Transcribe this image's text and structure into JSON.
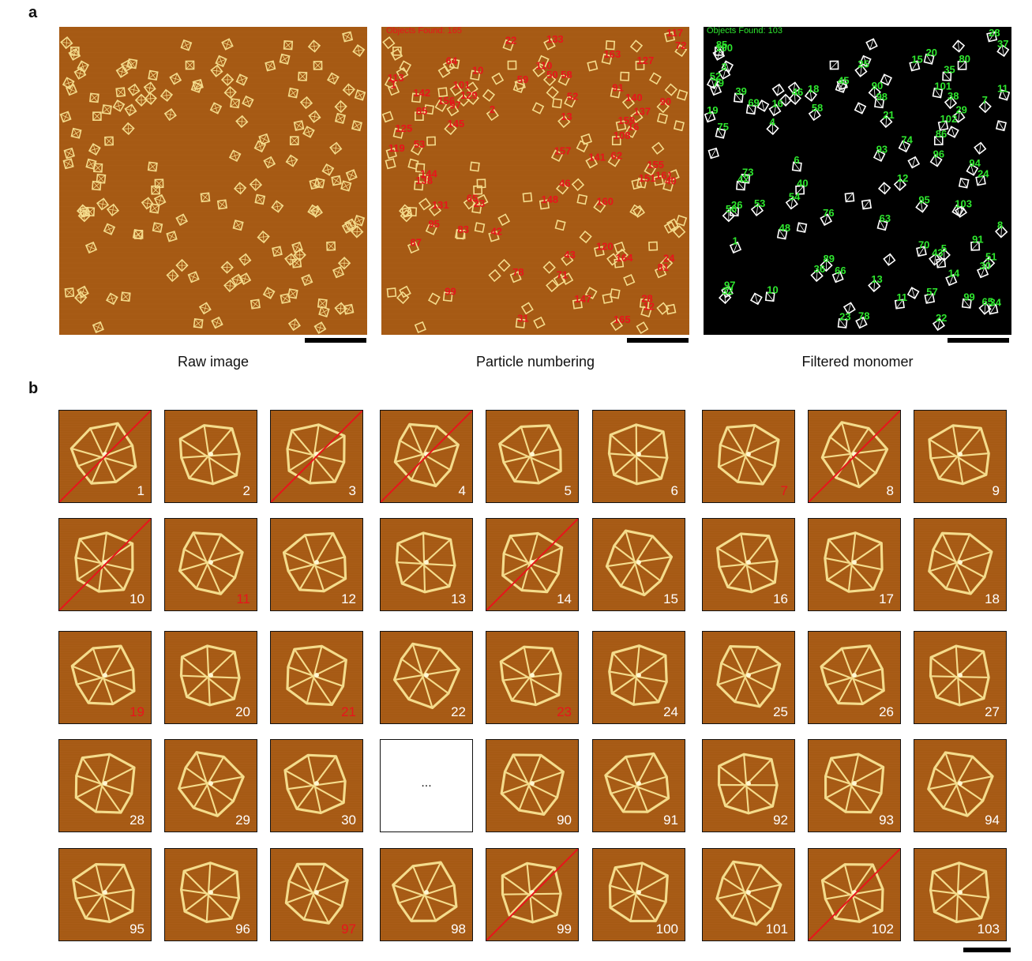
{
  "panel_a": {
    "letter": "a",
    "captions": {
      "raw": "Raw image",
      "numbering": "Particle numbering",
      "filtered": "Filtered monomer"
    },
    "numbering_overlay_text": "Objects Found: 165",
    "filtered_overlay_text": "Objects Found: 103",
    "red_color": "#e8141c",
    "green_color": "#2ee62e"
  },
  "panel_b": {
    "letter": "b",
    "ellipsis": "...",
    "rows": [
      [
        {
          "n": "1",
          "state": "crossed"
        },
        {
          "n": "2",
          "state": "ok"
        },
        {
          "n": "3",
          "state": "crossed"
        },
        {
          "n": "4",
          "state": "crossed"
        },
        {
          "n": "5",
          "state": "ok"
        },
        {
          "n": "6",
          "state": "ok"
        },
        {
          "n": "7",
          "state": "red"
        },
        {
          "n": "8",
          "state": "crossed"
        },
        {
          "n": "9",
          "state": "ok"
        }
      ],
      [
        {
          "n": "10",
          "state": "crossed"
        },
        {
          "n": "11",
          "state": "red"
        },
        {
          "n": "12",
          "state": "ok"
        },
        {
          "n": "13",
          "state": "ok"
        },
        {
          "n": "14",
          "state": "crossed"
        },
        {
          "n": "15",
          "state": "ok"
        },
        {
          "n": "16",
          "state": "ok"
        },
        {
          "n": "17",
          "state": "ok"
        },
        {
          "n": "18",
          "state": "ok"
        }
      ],
      [
        {
          "n": "19",
          "state": "red"
        },
        {
          "n": "20",
          "state": "ok"
        },
        {
          "n": "21",
          "state": "red"
        },
        {
          "n": "22",
          "state": "ok"
        },
        {
          "n": "23",
          "state": "red"
        },
        {
          "n": "24",
          "state": "ok"
        },
        {
          "n": "25",
          "state": "ok"
        },
        {
          "n": "26",
          "state": "ok"
        },
        {
          "n": "27",
          "state": "ok"
        }
      ],
      [
        {
          "n": "28",
          "state": "ok"
        },
        {
          "n": "29",
          "state": "ok"
        },
        {
          "n": "30",
          "state": "ok"
        },
        {
          "n": "",
          "state": "blank"
        },
        {
          "n": "90",
          "state": "ok"
        },
        {
          "n": "91",
          "state": "ok"
        },
        {
          "n": "92",
          "state": "ok"
        },
        {
          "n": "93",
          "state": "ok"
        },
        {
          "n": "94",
          "state": "ok"
        }
      ],
      [
        {
          "n": "95",
          "state": "ok"
        },
        {
          "n": "96",
          "state": "ok"
        },
        {
          "n": "97",
          "state": "red"
        },
        {
          "n": "98",
          "state": "ok"
        },
        {
          "n": "99",
          "state": "crossed"
        },
        {
          "n": "100",
          "state": "ok"
        },
        {
          "n": "101",
          "state": "ok"
        },
        {
          "n": "102",
          "state": "crossed"
        },
        {
          "n": "103",
          "state": "ok"
        }
      ]
    ]
  },
  "red_label_numbers": [
    "13",
    "28",
    "72",
    "81",
    "99",
    "120",
    "125",
    "159",
    "157",
    "160",
    "46",
    "91",
    "90",
    "101",
    "62",
    "137",
    "59",
    "108",
    "65",
    "129",
    "24",
    "155",
    "156",
    "140",
    "147",
    "16",
    "2",
    "31",
    "43",
    "78",
    "142",
    "119",
    "131",
    "127",
    "141",
    "144",
    "145",
    "58",
    "87",
    "97",
    "151",
    "165",
    "161",
    "133",
    "117",
    "138",
    "164",
    "110",
    "113",
    "148",
    "163",
    "1",
    "22",
    "52",
    "53",
    "64",
    "83",
    "71",
    "85",
    "95",
    "40",
    "42",
    "50",
    "10",
    "12",
    "23"
  ],
  "green_label_numbers": [
    "8",
    "37",
    "56",
    "70",
    "74",
    "93",
    "98",
    "101",
    "76",
    "96",
    "97",
    "86",
    "91",
    "51",
    "57",
    "38",
    "48",
    "58",
    "63",
    "66",
    "43",
    "53",
    "69",
    "73",
    "78",
    "1",
    "13",
    "22",
    "34",
    "28",
    "18",
    "25",
    "40",
    "20",
    "21",
    "11",
    "30",
    "35",
    "75",
    "90",
    "95",
    "6",
    "7",
    "19",
    "29",
    "46",
    "54",
    "89",
    "94",
    "3",
    "11",
    "15",
    "23",
    "32",
    "39",
    "45",
    "80",
    "85",
    "4",
    "5",
    "16",
    "12",
    "24",
    "26",
    "42",
    "36",
    "52",
    "65",
    "79",
    "99",
    "100",
    "10",
    "14",
    "102",
    "103"
  ],
  "colors": {
    "afm_background": "#a65a14",
    "afm_bright": "#f4dc8c",
    "crossline": "#e8141c",
    "red_num": "#e8141c"
  }
}
